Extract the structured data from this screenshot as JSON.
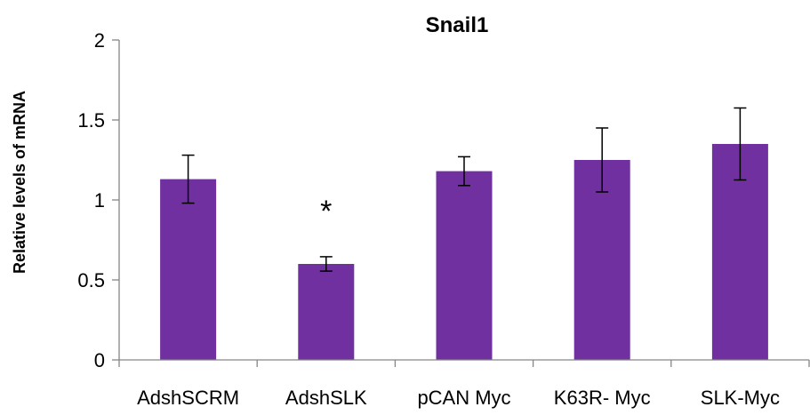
{
  "chart_data": {
    "type": "bar",
    "title": "Snail1",
    "xlabel": "",
    "ylabel": "Relative levels of mRNA",
    "ylim": [
      0,
      2
    ],
    "yticks": [
      "0",
      "0.5",
      "1",
      "1.5",
      "2"
    ],
    "categories": [
      "AdshSCRM",
      "AdshSLK",
      "pCAN Myc",
      "K63R- Myc",
      "SLK-Myc"
    ],
    "series": [
      {
        "values": [
          1.13,
          0.6,
          1.18,
          1.25,
          1.35
        ],
        "error": [
          0.15,
          0.045,
          0.09,
          0.2,
          0.225
        ],
        "color": "#7030A0"
      }
    ],
    "annotations": [
      {
        "category": "AdshSLK",
        "text": "*"
      }
    ],
    "grid": false,
    "legend": "none"
  }
}
